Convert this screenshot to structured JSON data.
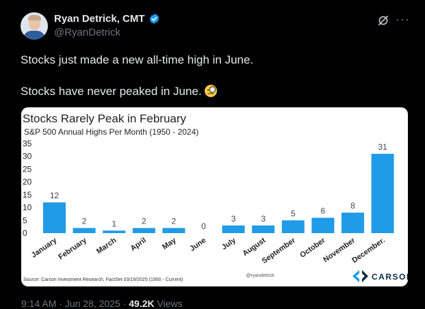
{
  "tweet": {
    "author_name": "Ryan Detrick, CMT",
    "handle": "@RyanDetrick",
    "line1": "Stocks just made a new all-time high in June.",
    "line2": "Stocks have never peaked in June.",
    "more_label": "···",
    "footer_time": "9:14 AM",
    "footer_date": "Jun 28, 2025",
    "views_count": "49.2K",
    "views_label": "Views",
    "separator": "·",
    "icons": [
      "verified-badge-icon",
      "grok-icon",
      "more-icon",
      "magnifying-glass-emoji"
    ],
    "accent": "#1d9bf0"
  },
  "chart_data": {
    "type": "bar",
    "title": "Stocks Rarely Peak in February",
    "subtitle": "S&P 500 Annual Highs Per Month (1950 - 2024)",
    "categories": [
      "January",
      "February",
      "March",
      "April",
      "May",
      "June",
      "July",
      "August",
      "September",
      "October",
      "November",
      "December."
    ],
    "values": [
      12,
      2,
      1,
      2,
      2,
      0,
      3,
      3,
      5,
      6,
      8,
      31
    ],
    "yticks": [
      "35",
      "30",
      "25",
      "20",
      "15",
      "10",
      "5",
      "0"
    ],
    "ylim": [
      0,
      35
    ],
    "bar_color": "#1f9be8",
    "grid": false,
    "legend": "none",
    "source": "Source: Carson Investment Research, FactSet 03/19/2025 (1950 - Current)",
    "watermark": "@ryandetrick",
    "brand": "CARSON"
  }
}
